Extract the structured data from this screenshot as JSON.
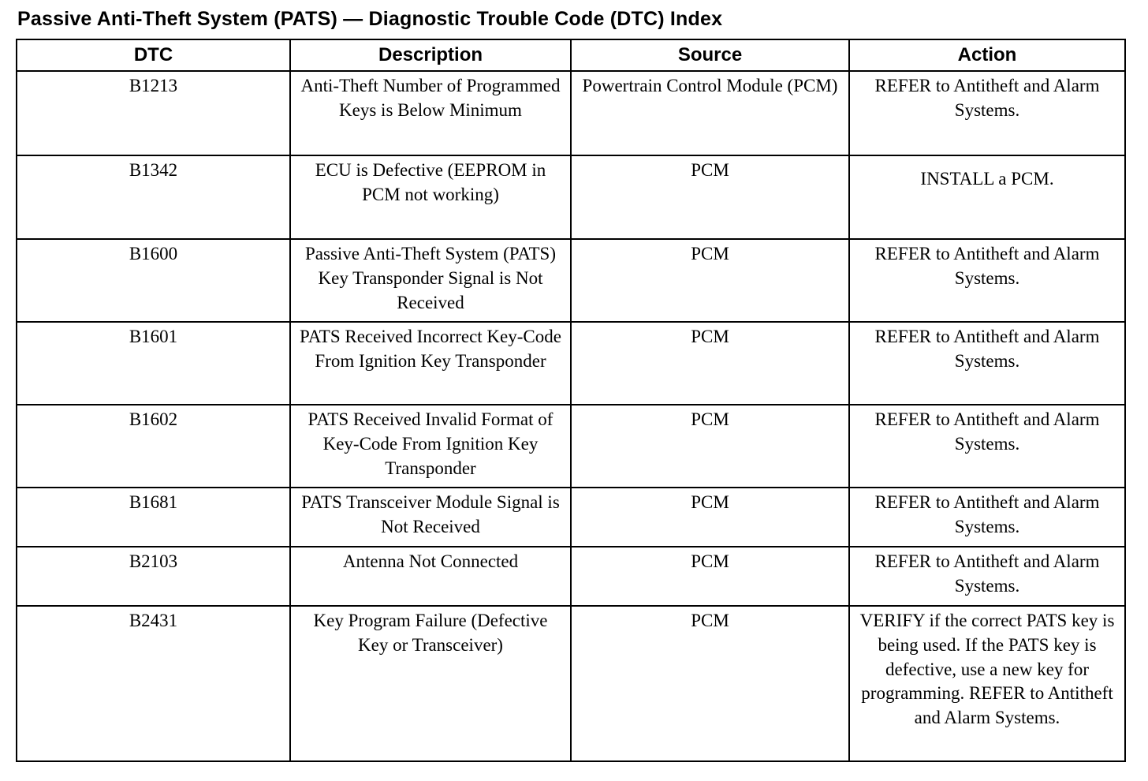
{
  "page": {
    "title": "Passive Anti-Theft System (PATS) — Diagnostic Trouble Code (DTC) Index"
  },
  "table": {
    "headers": [
      "DTC",
      "Description",
      "Source",
      "Action"
    ],
    "rows": [
      {
        "dtc": "B1213",
        "description": "Anti-Theft Number of Programmed Keys is Below Minimum",
        "source": "Powertrain Control Module (PCM)",
        "action": "REFER to Antitheft and Alarm Systems."
      },
      {
        "dtc": "B1342",
        "description": "ECU is Defective (EEPROM in PCM not working)",
        "source": "PCM",
        "action": "INSTALL a PCM."
      },
      {
        "dtc": "B1600",
        "description": "Passive Anti-Theft System (PATS) Key Transponder Signal is Not Received",
        "source": "PCM",
        "action": "REFER to Antitheft and Alarm Systems."
      },
      {
        "dtc": "B1601",
        "description": "PATS Received Incorrect Key-Code From Ignition Key Transponder",
        "source": "PCM",
        "action": "REFER to Antitheft and Alarm Systems."
      },
      {
        "dtc": "B1602",
        "description": "PATS Received Invalid Format of Key-Code From Ignition Key Transponder",
        "source": "PCM",
        "action": "REFER to Antitheft and Alarm Systems."
      },
      {
        "dtc": "B1681",
        "description": "PATS Transceiver Module Signal is Not Received",
        "source": "PCM",
        "action": "REFER to Antitheft and Alarm Systems."
      },
      {
        "dtc": "B2103",
        "description": "Antenna Not Connected",
        "source": "PCM",
        "action": "REFER to Antitheft and Alarm Systems."
      },
      {
        "dtc": "B2431",
        "description": "Key Program Failure (Defective Key or Transceiver)",
        "source": "PCM",
        "action": "VERIFY if the correct PATS key is being used. If the PATS key is defective, use a new key for programming. REFER to Antitheft and Alarm Systems."
      }
    ]
  }
}
